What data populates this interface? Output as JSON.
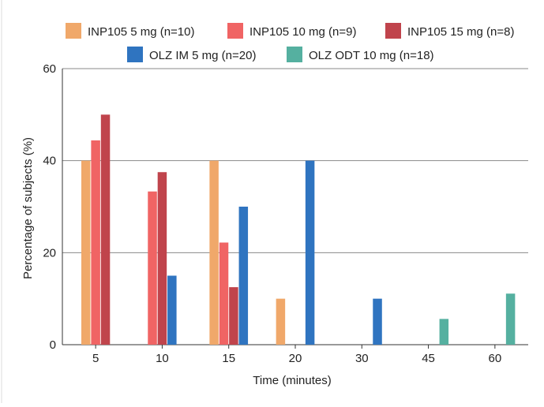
{
  "chart_data": {
    "type": "bar",
    "xlabel": "Time (minutes)",
    "ylabel": "Percentage of subjects (%)",
    "ylim": [
      0,
      60
    ],
    "yticks": [
      0,
      20,
      40,
      60
    ],
    "grid": true,
    "legend_position": "top",
    "categories": [
      "5",
      "10",
      "15",
      "20",
      "30",
      "45",
      "60"
    ],
    "series": [
      {
        "name": "INP105 5 mg (n=10)",
        "color": "#f0a86a",
        "values": [
          40,
          0,
          40,
          10,
          0,
          0,
          0
        ]
      },
      {
        "name": "INP105 10 mg (n=9)",
        "color": "#f06464",
        "values": [
          44.4,
          33.3,
          22.2,
          0,
          0,
          0,
          0
        ]
      },
      {
        "name": "INP105 15 mg (n=8)",
        "color": "#c0444c",
        "values": [
          50,
          37.5,
          12.5,
          0,
          0,
          0,
          0
        ]
      },
      {
        "name": "OLZ IM 5 mg (n=20)",
        "color": "#2f74c0",
        "values": [
          0,
          15,
          30,
          40,
          10,
          0,
          0
        ]
      },
      {
        "name": "OLZ ODT 10 mg (n=18)",
        "color": "#55b0a0",
        "values": [
          0,
          0,
          0,
          0,
          0,
          5.6,
          11.1
        ]
      }
    ]
  }
}
